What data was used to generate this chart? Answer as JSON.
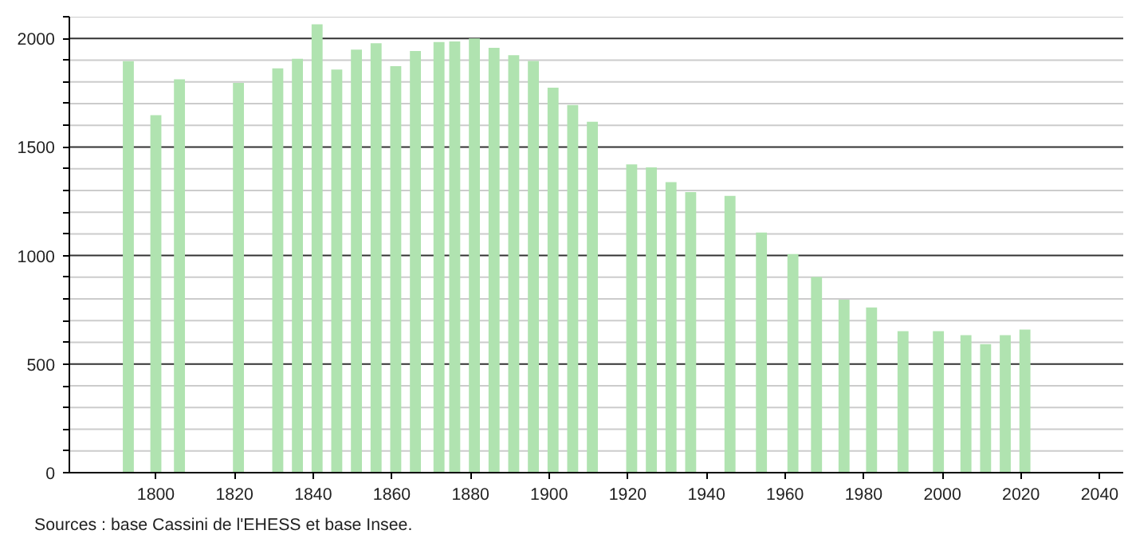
{
  "chart_data": {
    "type": "bar",
    "color": "#b0e3b0",
    "x": [
      1793,
      1800,
      1806,
      1821,
      1831,
      1836,
      1841,
      1846,
      1851,
      1856,
      1861,
      1866,
      1872,
      1876,
      1881,
      1886,
      1891,
      1896,
      1901,
      1906,
      1911,
      1921,
      1926,
      1931,
      1936,
      1946,
      1954,
      1962,
      1968,
      1975,
      1982,
      1990,
      1999,
      2006,
      2011,
      2016,
      2021
    ],
    "values": [
      1895,
      1647,
      1812,
      1795,
      1862,
      1906,
      2065,
      1857,
      1949,
      1978,
      1872,
      1942,
      1983,
      1986,
      2000,
      1957,
      1923,
      1896,
      1773,
      1693,
      1616,
      1420,
      1406,
      1338,
      1292,
      1275,
      1106,
      1007,
      901,
      797,
      761,
      652,
      652,
      633,
      592,
      633,
      659
    ],
    "xlim": [
      1778,
      2046
    ],
    "xticks": [
      1800,
      1820,
      1840,
      1860,
      1880,
      1900,
      1920,
      1940,
      1960,
      1980,
      2000,
      2020,
      2040
    ],
    "ylim": [
      0,
      2100
    ],
    "yticks": [
      0,
      {
        "value": 100,
        "label": null
      },
      {
        "value": 200,
        "label": null
      },
      {
        "value": 300,
        "label": null
      },
      {
        "value": 400,
        "label": null
      },
      500,
      {
        "value": 600,
        "label": null
      },
      {
        "value": 700,
        "label": null
      },
      {
        "value": 800,
        "label": null
      },
      {
        "value": 900,
        "label": null
      },
      1000,
      {
        "value": 1100,
        "label": null
      },
      {
        "value": 1200,
        "label": null
      },
      {
        "value": 1300,
        "label": null
      },
      {
        "value": 1400,
        "label": null
      },
      1500,
      {
        "value": 1600,
        "label": null
      },
      {
        "value": 1700,
        "label": null
      },
      {
        "value": 1800,
        "label": null
      },
      {
        "value": 1900,
        "label": null
      },
      2000,
      {
        "value": 2100,
        "label": null
      }
    ],
    "grid": "y",
    "annotations": [
      "Sources : base Cassini de l'EHESS et base Insee."
    ]
  }
}
